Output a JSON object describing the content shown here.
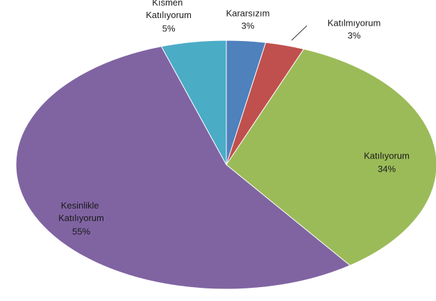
{
  "chart_data": {
    "type": "pie",
    "categories": [
      "Kararsızım",
      "Katılmıyorum",
      "Katılıyorum",
      "Kesinlikle Katılıyorum",
      "Kısmen Katılıyorum"
    ],
    "values": [
      3,
      3,
      34,
      55,
      5
    ],
    "value_labels": [
      "3%",
      "3%",
      "34%",
      "55%",
      "5%"
    ],
    "colors": [
      "#4f81bd",
      "#c0504d",
      "#9bbb59",
      "#8064a2",
      "#4bacc6"
    ]
  }
}
